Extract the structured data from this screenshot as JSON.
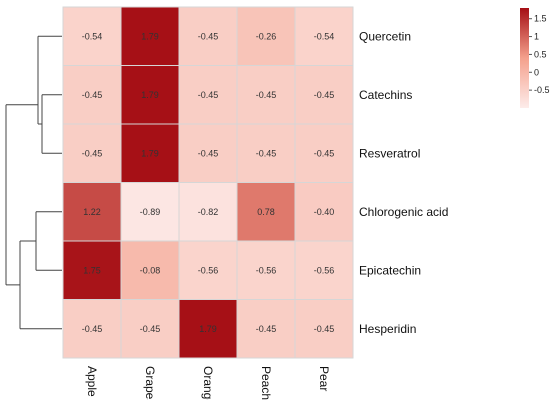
{
  "chart_data": {
    "type": "heatmap",
    "title": "",
    "xlabel": "",
    "ylabel": "",
    "columns": [
      "Apple",
      "Grapes",
      "Orange",
      "Peach",
      "Pear"
    ],
    "rows": [
      "Quercetin",
      "Catechins",
      "Resveratrol",
      "Chlorogenic acid",
      "Epicatechin",
      "Hesperidin"
    ],
    "values": [
      [
        -0.54,
        1.79,
        -0.45,
        -0.26,
        -0.54
      ],
      [
        -0.45,
        1.79,
        -0.45,
        -0.45,
        -0.45
      ],
      [
        -0.45,
        1.79,
        -0.45,
        -0.45,
        -0.45
      ],
      [
        1.22,
        -0.89,
        -0.82,
        0.78,
        -0.4
      ],
      [
        1.75,
        -0.08,
        -0.56,
        -0.56,
        -0.56
      ],
      [
        -0.45,
        -0.45,
        1.79,
        -0.45,
        -0.45
      ]
    ],
    "cell_labels": [
      [
        "-0.54",
        "1.79",
        "-0.45",
        "-0.26",
        "-0.54"
      ],
      [
        "-0.45",
        "1.79",
        "-0.45",
        "-0.45",
        "-0.45"
      ],
      [
        "-0.45",
        "1.79",
        "-0.45",
        "-0.45",
        "-0.45"
      ],
      [
        "1.22",
        "-0.89",
        "-0.82",
        "0.78",
        "-0.40"
      ],
      [
        "1.75",
        "-0.08",
        "-0.56",
        "-0.56",
        "-0.56"
      ],
      [
        "-0.45",
        "-0.45",
        "1.79",
        "-0.45",
        "-0.45"
      ]
    ],
    "color_scale": {
      "low_color": "#fdecea",
      "mid_color": "#f4a08c",
      "high_color": "#a50f15",
      "range": [
        -1,
        1.8
      ]
    },
    "legend": {
      "position": "top-right",
      "ticks": [
        1.5,
        1,
        0.5,
        0,
        -0.5
      ],
      "tick_labels": [
        "1.5",
        "1",
        "0.5",
        "0",
        "-0.5"
      ]
    },
    "row_dendrogram": true,
    "grid": true
  }
}
